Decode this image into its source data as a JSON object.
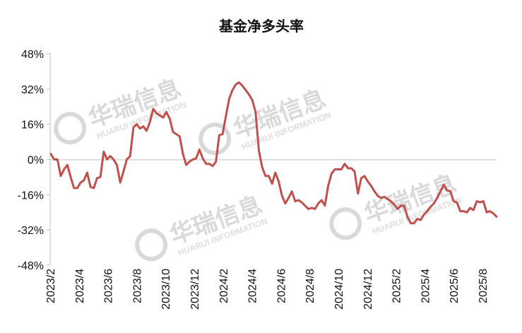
{
  "chart_data": {
    "type": "line",
    "title": "基金净多头率",
    "xlabel": "",
    "ylabel": "",
    "ylim": [
      -48,
      48
    ],
    "yticks": [
      "48%",
      "32%",
      "16%",
      "0%",
      "-16%",
      "-32%",
      "-48%"
    ],
    "ytick_values": [
      48,
      32,
      16,
      0,
      -16,
      -32,
      -48
    ],
    "xticks": [
      "2023/2",
      "2023/4",
      "2023/6",
      "2023/8",
      "2023/10",
      "2023/12",
      "2024/2",
      "2024/4",
      "2024/6",
      "2024/8",
      "2024/10",
      "2024/12",
      "2025/2",
      "2025/4",
      "2025/6",
      "2025/8"
    ],
    "grid": false,
    "legend": "none",
    "series": [
      {
        "color": "#c0504d",
        "values": [
          2.5,
          0,
          0,
          -7.5,
          -4.5,
          -2.5,
          -8,
          -13,
          -13,
          -10.5,
          -9.5,
          -6,
          -12.5,
          -13,
          -8.5,
          -8,
          3.5,
          0,
          1.5,
          0,
          -2.5,
          -10.5,
          -5.5,
          0,
          1.5,
          14.5,
          16,
          14,
          15,
          13,
          17,
          23,
          21,
          20,
          19,
          21.5,
          18.5,
          12.5,
          11.5,
          10.5,
          2.5,
          -2.5,
          -1,
          0,
          0.5,
          4.5,
          0.5,
          -2,
          -2,
          -3,
          -1,
          11,
          11.5,
          19.5,
          27.5,
          31.5,
          34,
          35,
          33.5,
          31.5,
          29.5,
          27,
          21.5,
          4,
          -3.5,
          -7.5,
          -7.5,
          -11,
          -6,
          -10,
          -16.5,
          -20,
          -17.5,
          -14.5,
          -19,
          -18.5,
          -19.5,
          -21,
          -22.5,
          -22,
          -22.5,
          -20,
          -18.5,
          -21,
          -12,
          -6.5,
          -4.5,
          -4.5,
          -4.5,
          -2,
          -4,
          -4,
          -5.5,
          -15.5,
          -8.5,
          -7.5,
          -10,
          -12,
          -14.5,
          -16.5,
          -17.5,
          -17,
          -18,
          -19,
          -20.5,
          -22.5,
          -21,
          -21,
          -26,
          -29,
          -29,
          -27,
          -27.5,
          -25,
          -23.5,
          -21.5,
          -20,
          -17.5,
          -14.5,
          -11.5,
          -14,
          -14.5,
          -19,
          -19.5,
          -23.5,
          -23.5,
          -24,
          -22,
          -23,
          -19,
          -19.5,
          -19,
          -24,
          -23.5,
          -24.5,
          -26
        ]
      }
    ]
  },
  "watermark": {
    "name": "华瑞信息",
    "subtitle": "HUARUI INFORMATION",
    "color": "#d9d9d9"
  }
}
